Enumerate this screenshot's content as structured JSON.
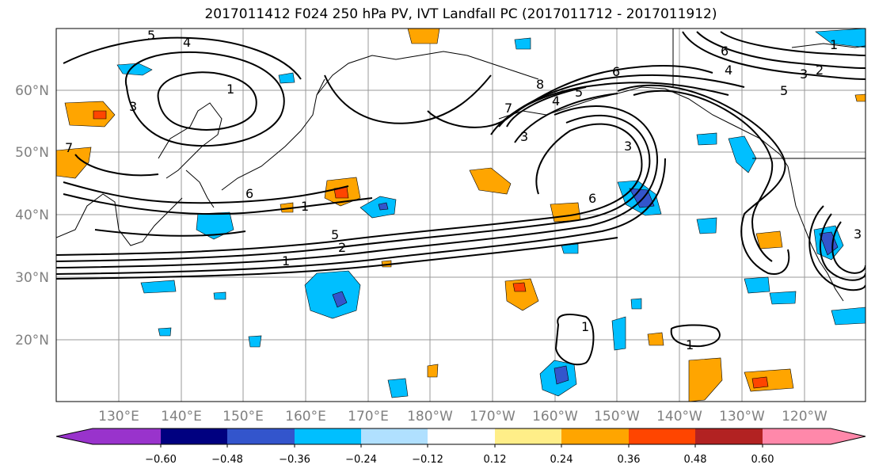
{
  "title": "2017011412 F024 250 hPa PV, IVT Landfall PC (2017011712 - 2017011912)",
  "lat_labels": [
    "60°N",
    "50°N",
    "40°N",
    "30°N",
    "20°N"
  ],
  "lon_labels": [
    "130°E",
    "140°E",
    "150°E",
    "160°E",
    "170°E",
    "180°W",
    "170°W",
    "160°W",
    "150°W",
    "140°W",
    "130°W",
    "120°W"
  ],
  "colorbar": {
    "colors": [
      "#9933cc",
      "#000080",
      "#3355cc",
      "#00bfff",
      "#b0e0ff",
      "#ffffff",
      "#ffee88",
      "#ffa500",
      "#ff4500",
      "#b22222",
      "#ff88aa"
    ],
    "tick_labels": [
      "−0.60",
      "−0.48",
      "−0.36",
      "−0.24",
      "−0.12",
      "0.12",
      "0.24",
      "0.36",
      "0.48",
      "0.60"
    ]
  },
  "contour_labels": [
    "5",
    "4",
    "1",
    "3",
    "6",
    "7",
    "6",
    "1",
    "5",
    "2",
    "1",
    "8",
    "7",
    "4",
    "5",
    "6",
    "3",
    "3",
    "6",
    "4",
    "3",
    "2",
    "1",
    "5",
    "1",
    "1",
    "3"
  ]
}
